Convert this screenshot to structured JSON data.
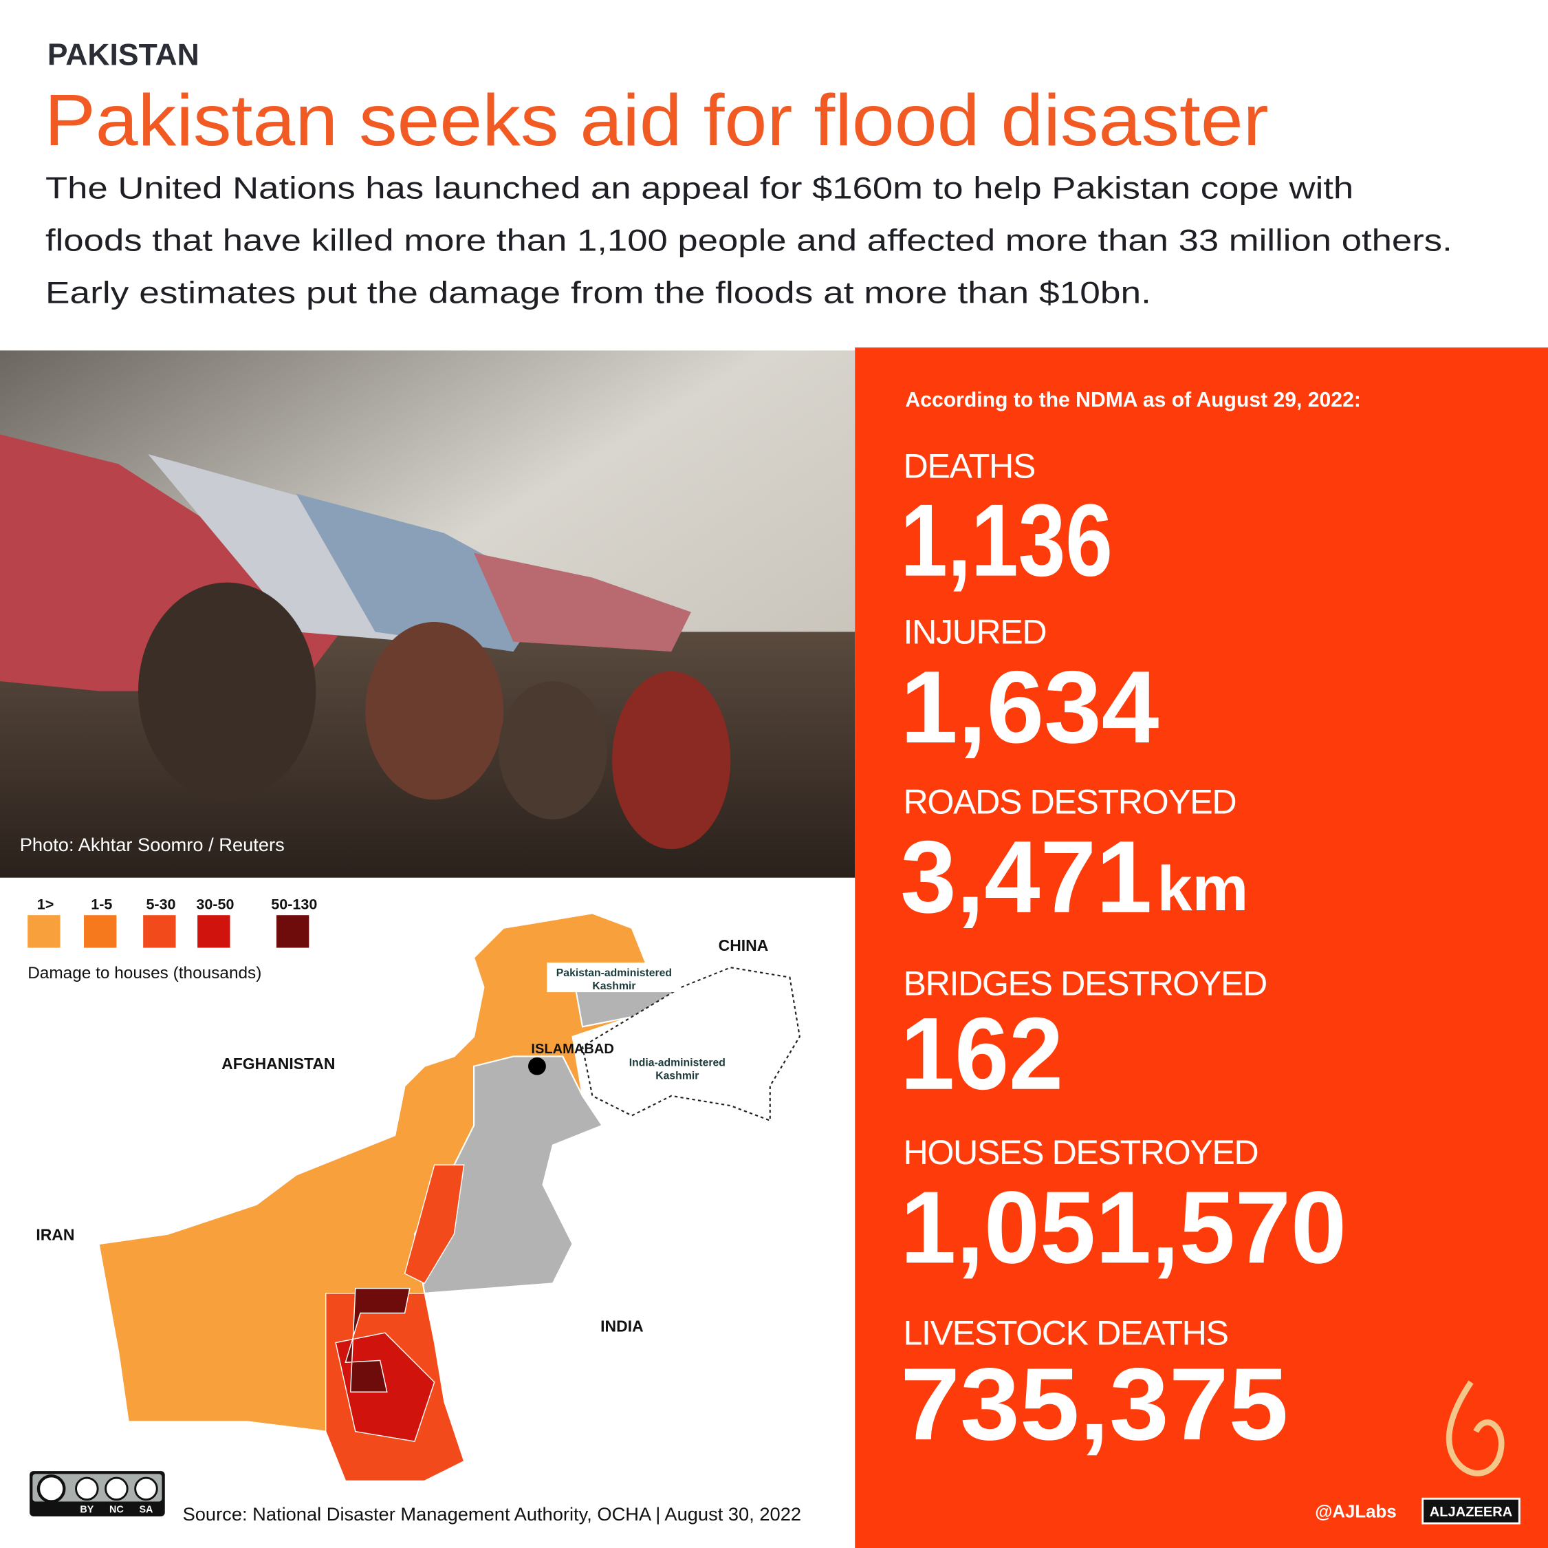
{
  "header": {
    "kicker": "PAKISTAN",
    "title": "Pakistan seeks aid for flood disaster",
    "subtitle_lines": [
      "The United Nations has launched an appeal for $160m to help Pakistan cope with",
      "floods that have killed more than 1,100 people and affected more than 33 million others.",
      "Early estimates put the damage from the floods at more than $10bn."
    ]
  },
  "photo": {
    "credit": "Photo: Akhtar Soomro / Reuters"
  },
  "map": {
    "legend": {
      "items": [
        "1>",
        "1-5",
        "5-30",
        "30-50",
        "50-130"
      ],
      "colors": [
        "#f7a03c",
        "#f7791e",
        "#f24a1b",
        "#d1130d",
        "#6e0b0b"
      ],
      "title": "Damage to houses (thousands)"
    },
    "labels": {
      "china": "CHINA",
      "pak_kashmir": [
        "Pakistan-administered",
        "Kashmir"
      ],
      "islamabad": "ISLAMABAD",
      "india_kashmir": [
        "India-administered",
        "Kashmir"
      ],
      "afghanistan": "AFGHANISTAN",
      "iran": "IRAN",
      "india": "INDIA"
    }
  },
  "stats": {
    "intro": "According to the NDMA as of August 29, 2022:",
    "items": [
      {
        "label": "DEATHS",
        "value": "1,136"
      },
      {
        "label": "INJURED",
        "value": "1,634"
      },
      {
        "label": "ROADS DESTROYED",
        "value": "3,471",
        "unit": "km"
      },
      {
        "label": "BRIDGES DESTROYED",
        "value": "162"
      },
      {
        "label": "HOUSES DESTROYED",
        "value": "1,051,570"
      },
      {
        "label": "LIVESTOCK DEATHS",
        "value": "735,375"
      }
    ]
  },
  "footer": {
    "license": [
      "BY",
      "NC",
      "SA"
    ],
    "source": "Source:  National Disaster Management Authority, OCHA  |  August  30, 2022",
    "handle": "@AJLabs",
    "logo": "ALJAZEERA"
  }
}
